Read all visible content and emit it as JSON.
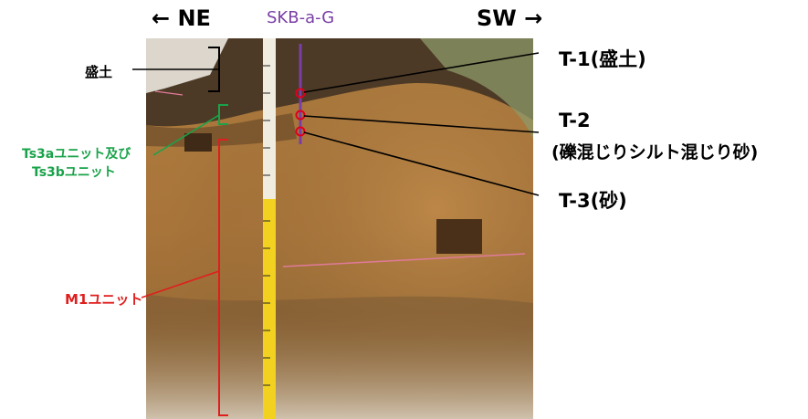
{
  "directions": {
    "left": "← NE",
    "right": "SW →"
  },
  "section_label": "SKB-a-G",
  "units": {
    "fill": "盛土",
    "ts3": [
      "Ts3aユニット及び",
      "Ts3bユニット"
    ],
    "m1": "M1ユニット"
  },
  "samples": {
    "t1": "T-1(盛土)",
    "t2_line1": "T-2",
    "t2_line2": "(礫混じりシルト混じり砂)",
    "t3": "T-3(砂)"
  },
  "colors": {
    "fill": "#000000",
    "ts3": "#1aa34a",
    "m1": "#e01e1e",
    "section": "#7a3fa6",
    "sample_marker": "#e0001a"
  }
}
